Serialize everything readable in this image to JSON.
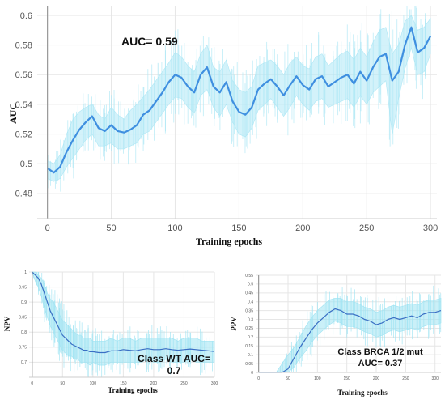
{
  "chart_data": [
    {
      "type": "line",
      "annotation": "AUC= 0.59",
      "xlabel": "Training epochs",
      "ylabel": "AUC",
      "xlim": [
        -8,
        305
      ],
      "ylim": [
        0.463,
        0.606
      ],
      "x_ticks": [
        "0",
        "50",
        "100",
        "150",
        "200",
        "250",
        "300"
      ],
      "y_ticks": [
        "0.48",
        "0.5",
        "0.52",
        "0.54",
        "0.56",
        "0.58",
        "0.6"
      ],
      "grid": true,
      "colors": {
        "smoothed": "#3f8fe0",
        "raw": "#aee7f5",
        "axis": "#999999"
      },
      "x": [
        0,
        5,
        10,
        15,
        20,
        25,
        30,
        35,
        40,
        45,
        50,
        55,
        60,
        65,
        70,
        75,
        80,
        85,
        90,
        95,
        100,
        105,
        110,
        115,
        120,
        125,
        130,
        135,
        140,
        145,
        150,
        155,
        160,
        165,
        170,
        175,
        180,
        185,
        190,
        195,
        200,
        205,
        210,
        215,
        220,
        225,
        230,
        235,
        240,
        245,
        250,
        255,
        260,
        265,
        270,
        275,
        280,
        285,
        290,
        295,
        300
      ],
      "smoothed": [
        0.497,
        0.494,
        0.498,
        0.508,
        0.516,
        0.523,
        0.528,
        0.532,
        0.524,
        0.522,
        0.526,
        0.522,
        0.521,
        0.523,
        0.526,
        0.533,
        0.536,
        0.542,
        0.548,
        0.555,
        0.56,
        0.558,
        0.552,
        0.548,
        0.56,
        0.565,
        0.552,
        0.548,
        0.555,
        0.542,
        0.535,
        0.533,
        0.538,
        0.55,
        0.554,
        0.557,
        0.552,
        0.546,
        0.553,
        0.559,
        0.553,
        0.55,
        0.557,
        0.559,
        0.552,
        0.555,
        0.558,
        0.56,
        0.554,
        0.562,
        0.556,
        0.565,
        0.572,
        0.574,
        0.556,
        0.562,
        0.58,
        0.592,
        0.575,
        0.578,
        0.586
      ],
      "raw_upper": [
        0.502,
        0.5,
        0.506,
        0.52,
        0.53,
        0.535,
        0.538,
        0.54,
        0.533,
        0.53,
        0.538,
        0.533,
        0.53,
        0.536,
        0.54,
        0.545,
        0.55,
        0.556,
        0.562,
        0.568,
        0.575,
        0.572,
        0.566,
        0.562,
        0.574,
        0.58,
        0.565,
        0.562,
        0.57,
        0.556,
        0.55,
        0.548,
        0.552,
        0.566,
        0.568,
        0.57,
        0.566,
        0.56,
        0.568,
        0.572,
        0.566,
        0.564,
        0.572,
        0.574,
        0.566,
        0.57,
        0.574,
        0.576,
        0.57,
        0.578,
        0.572,
        0.582,
        0.59,
        0.592,
        0.574,
        0.58,
        0.596,
        0.6,
        0.59,
        0.592,
        0.598
      ],
      "raw_lower": [
        0.49,
        0.488,
        0.49,
        0.498,
        0.504,
        0.51,
        0.516,
        0.52,
        0.512,
        0.512,
        0.514,
        0.51,
        0.51,
        0.512,
        0.514,
        0.52,
        0.522,
        0.528,
        0.534,
        0.54,
        0.545,
        0.544,
        0.538,
        0.534,
        0.546,
        0.55,
        0.538,
        0.532,
        0.54,
        0.528,
        0.52,
        0.518,
        0.524,
        0.536,
        0.54,
        0.544,
        0.538,
        0.532,
        0.538,
        0.546,
        0.54,
        0.536,
        0.542,
        0.544,
        0.538,
        0.54,
        0.542,
        0.544,
        0.538,
        0.546,
        0.54,
        0.548,
        0.552,
        0.556,
        0.52,
        0.544,
        0.564,
        0.578,
        0.56,
        0.562,
        0.574
      ]
    },
    {
      "type": "line",
      "annotation_line1": "Class WT AUC=",
      "annotation_line2": "0.7",
      "xlabel": "Training epochs",
      "ylabel": "NPV",
      "xlim": [
        -5,
        300
      ],
      "ylim": [
        0.65,
        1.0
      ],
      "x_ticks": [
        "0",
        "50",
        "100",
        "150",
        "200",
        "250",
        "300"
      ],
      "y_ticks": [
        "0.7",
        "0.75",
        "0.8",
        "0.85",
        "0.9",
        "0.95",
        "1"
      ],
      "grid": true,
      "colors": {
        "smoothed": "#3a6fc4",
        "raw": "#9fe3f2",
        "axis": "#999999"
      },
      "x": [
        0,
        5,
        10,
        15,
        20,
        25,
        30,
        35,
        40,
        45,
        50,
        55,
        60,
        65,
        70,
        75,
        80,
        85,
        90,
        95,
        100,
        110,
        120,
        130,
        140,
        150,
        160,
        170,
        180,
        190,
        200,
        210,
        220,
        230,
        240,
        250,
        260,
        270,
        280,
        290,
        300
      ],
      "smoothed": [
        1.0,
        0.99,
        0.98,
        0.96,
        0.93,
        0.9,
        0.87,
        0.85,
        0.83,
        0.81,
        0.79,
        0.78,
        0.77,
        0.76,
        0.755,
        0.75,
        0.745,
        0.74,
        0.74,
        0.735,
        0.735,
        0.732,
        0.732,
        0.738,
        0.738,
        0.742,
        0.74,
        0.738,
        0.742,
        0.745,
        0.742,
        0.742,
        0.745,
        0.742,
        0.74,
        0.742,
        0.744,
        0.742,
        0.74,
        0.738,
        0.736
      ],
      "raw_upper": [
        1.0,
        1.0,
        0.99,
        0.98,
        0.96,
        0.93,
        0.91,
        0.9,
        0.88,
        0.86,
        0.84,
        0.83,
        0.82,
        0.81,
        0.8,
        0.79,
        0.79,
        0.78,
        0.78,
        0.78,
        0.77,
        0.77,
        0.77,
        0.78,
        0.77,
        0.78,
        0.78,
        0.77,
        0.78,
        0.78,
        0.78,
        0.78,
        0.78,
        0.78,
        0.77,
        0.78,
        0.78,
        0.78,
        0.77,
        0.77,
        0.77
      ],
      "raw_lower": [
        1.0,
        0.97,
        0.95,
        0.92,
        0.88,
        0.85,
        0.82,
        0.8,
        0.78,
        0.76,
        0.74,
        0.73,
        0.72,
        0.72,
        0.71,
        0.71,
        0.7,
        0.7,
        0.7,
        0.69,
        0.7,
        0.69,
        0.69,
        0.7,
        0.7,
        0.7,
        0.7,
        0.7,
        0.7,
        0.71,
        0.7,
        0.7,
        0.71,
        0.7,
        0.7,
        0.7,
        0.71,
        0.7,
        0.7,
        0.7,
        0.7
      ]
    },
    {
      "type": "line",
      "annotation_line1": "Class BRCA 1/2 mut",
      "annotation_line2": "AUC= 0.37",
      "xlabel": "Training epochs",
      "ylabel": "PPV",
      "xlim": [
        -5,
        310
      ],
      "ylim": [
        0.0,
        0.55
      ],
      "x_ticks": [
        "0",
        "50",
        "100",
        "150",
        "200",
        "250",
        "300"
      ],
      "y_ticks": [
        "0",
        "0.05",
        "0.1",
        "0.15",
        "0.2",
        "0.25",
        "0.3",
        "0.35",
        "0.4",
        "0.45",
        "0.5",
        "0.55"
      ],
      "grid": true,
      "colors": {
        "smoothed": "#3a6fc4",
        "raw": "#9fe3f2",
        "axis": "#999999"
      },
      "x": [
        0,
        10,
        20,
        30,
        40,
        50,
        60,
        70,
        80,
        90,
        100,
        110,
        120,
        130,
        140,
        150,
        160,
        170,
        180,
        190,
        200,
        210,
        220,
        230,
        240,
        250,
        260,
        270,
        280,
        290,
        300,
        310
      ],
      "smoothed": [
        0.0,
        0.0,
        0.0,
        0.0,
        0.0,
        0.02,
        0.08,
        0.14,
        0.19,
        0.24,
        0.28,
        0.31,
        0.34,
        0.36,
        0.35,
        0.33,
        0.33,
        0.32,
        0.3,
        0.29,
        0.27,
        0.28,
        0.3,
        0.31,
        0.3,
        0.31,
        0.32,
        0.31,
        0.33,
        0.34,
        0.34,
        0.35
      ],
      "raw_upper": [
        0.0,
        0.0,
        0.0,
        0.0,
        0.05,
        0.1,
        0.14,
        0.2,
        0.26,
        0.31,
        0.35,
        0.38,
        0.41,
        0.42,
        0.42,
        0.4,
        0.4,
        0.39,
        0.37,
        0.36,
        0.34,
        0.35,
        0.37,
        0.38,
        0.37,
        0.38,
        0.39,
        0.38,
        0.4,
        0.41,
        0.41,
        0.42
      ],
      "raw_lower": [
        0.0,
        0.0,
        0.0,
        0.0,
        0.0,
        0.0,
        0.03,
        0.08,
        0.12,
        0.17,
        0.21,
        0.24,
        0.27,
        0.29,
        0.28,
        0.26,
        0.26,
        0.25,
        0.23,
        0.22,
        0.2,
        0.21,
        0.23,
        0.24,
        0.23,
        0.24,
        0.25,
        0.24,
        0.26,
        0.27,
        0.27,
        0.28
      ]
    }
  ]
}
